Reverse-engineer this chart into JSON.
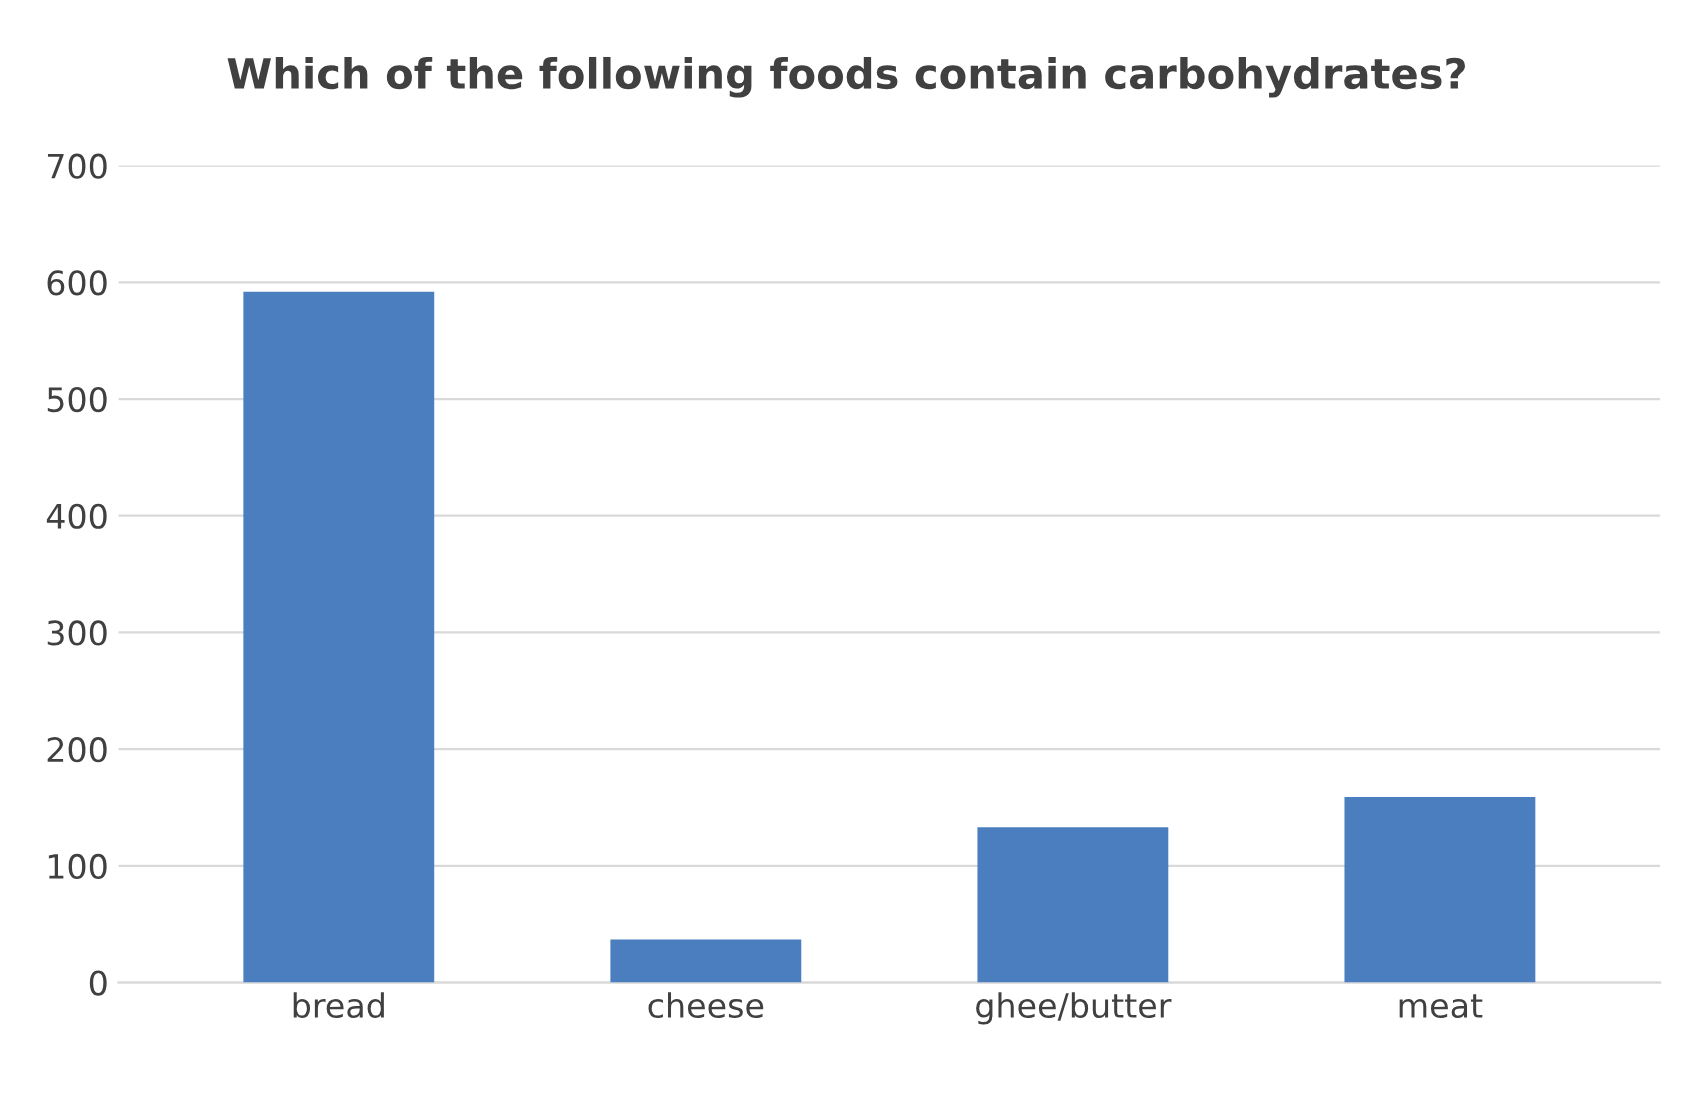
{
  "chart_data": {
    "type": "bar",
    "title": "Which of the following foods contain carbohydrates?",
    "categories": [
      "bread",
      "cheese",
      "ghee/butter",
      "meat"
    ],
    "values": [
      592,
      37,
      133,
      159
    ],
    "color": "#4a7ebf",
    "ylim": [
      0,
      700
    ],
    "yticks": [
      0,
      100,
      200,
      300,
      400,
      500,
      600,
      700
    ],
    "grid": "y"
  }
}
